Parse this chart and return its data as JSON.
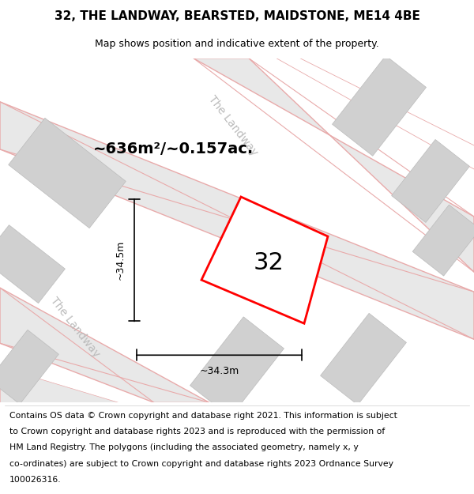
{
  "title": "32, THE LANDWAY, BEARSTED, MAIDSTONE, ME14 4BE",
  "subtitle": "Map shows position and indicative extent of the property.",
  "footer_lines": [
    "Contains OS data © Crown copyright and database right 2021. This information is subject",
    "to Crown copyright and database rights 2023 and is reproduced with the permission of",
    "HM Land Registry. The polygons (including the associated geometry, namely x, y",
    "co-ordinates) are subject to Crown copyright and database rights 2023 Ordnance Survey",
    "100026316."
  ],
  "area_label": "~636m²/~0.157ac.",
  "width_label": "~34.3m",
  "height_label": "~34.5m",
  "plot_number": "32",
  "map_bg": "#f0f0f0",
  "road_fill_color": "#e8e8e8",
  "road_line_color": "#e8aaaa",
  "building_color": "#d0d0d0",
  "building_edge_color": "#bbbbbb",
  "plot_outline_color": "#ff0000",
  "plot_fill_color": "#ffffff",
  "dim_line_color": "#000000",
  "road_label_color": "#bbbbbb",
  "title_fontsize": 11,
  "subtitle_fontsize": 9,
  "footer_fontsize": 7.8,
  "area_fontsize": 14,
  "number_fontsize": 22,
  "road_label_fontsize": 10,
  "dim_fontsize": 9
}
